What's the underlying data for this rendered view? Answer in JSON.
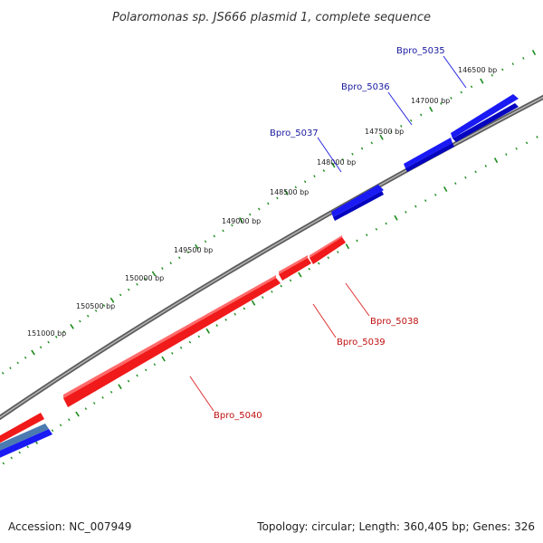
{
  "title": "Polaromonas sp. JS666 plasmid 1, complete sequence",
  "footer": {
    "accession": "Accession: NC_007949",
    "summary": "Topology: circular; Length: 360,405 bp; Genes: 326"
  },
  "colors": {
    "forward_gene": "#1010f0",
    "reverse_gene": "#f01010",
    "backbone": "#808080",
    "tick": "#1e8c1e",
    "forward_label": "#1a1aa0",
    "reverse_label": "#c01010"
  },
  "bp_ticks": [
    "146500 bp",
    "147000 bp",
    "147500 bp",
    "148000 bp",
    "148500 bp",
    "149000 bp",
    "149500 bp",
    "150000 bp",
    "150500 bp",
    "151000 bp"
  ],
  "genes": [
    {
      "id": "Bpro_5035",
      "strand": "forward"
    },
    {
      "id": "Bpro_5036",
      "strand": "forward"
    },
    {
      "id": "Bpro_5037",
      "strand": "forward"
    },
    {
      "id": "Bpro_5038",
      "strand": "reverse"
    },
    {
      "id": "Bpro_5039",
      "strand": "reverse"
    },
    {
      "id": "Bpro_5040",
      "strand": "reverse"
    }
  ]
}
